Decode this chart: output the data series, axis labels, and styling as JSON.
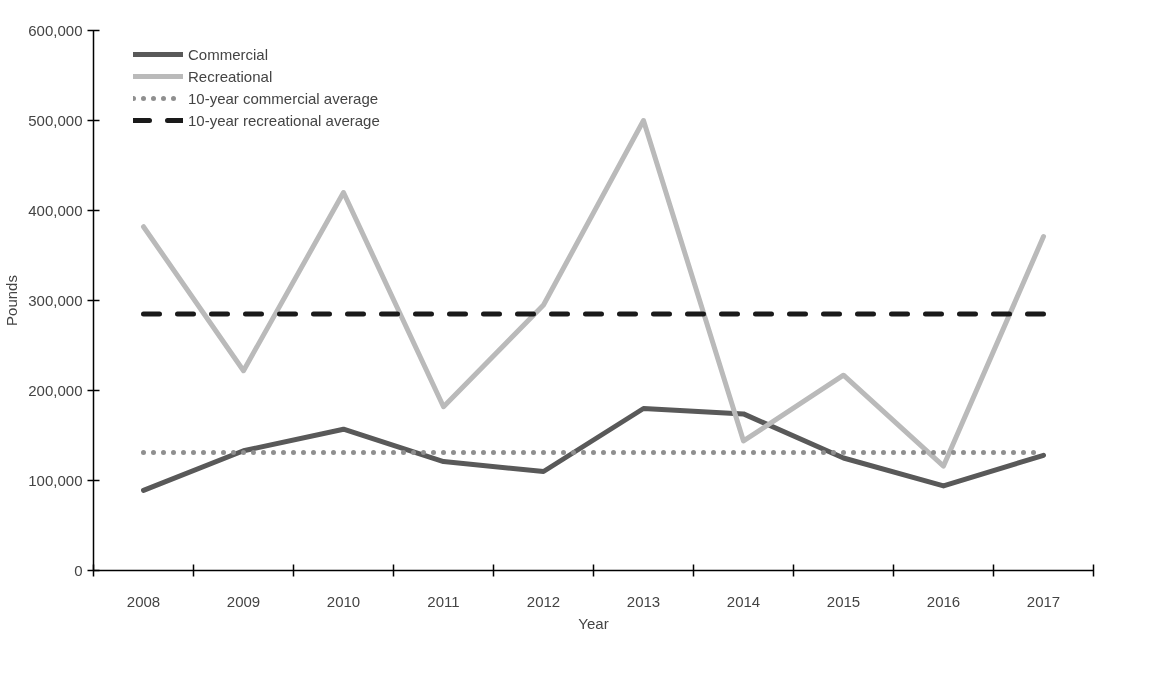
{
  "chart_data": {
    "type": "line",
    "xlabel": "Year",
    "ylabel": "Pounds",
    "categories": [
      "2008",
      "2009",
      "2010",
      "2011",
      "2012",
      "2013",
      "2014",
      "2015",
      "2016",
      "2017"
    ],
    "series": [
      {
        "name": "Commercial",
        "color": "#595959",
        "line_style": "solid",
        "values": [
          89000,
          133000,
          157000,
          121000,
          110000,
          180000,
          174000,
          125000,
          94000,
          128000
        ]
      },
      {
        "name": "Recreational",
        "color": "#bababa",
        "line_style": "solid",
        "values": [
          382000,
          222000,
          420000,
          182000,
          295000,
          500000,
          144000,
          217000,
          116000,
          371000
        ]
      },
      {
        "name": "10-year commercial average",
        "color": "#8f8f8f",
        "line_style": "dotted",
        "values": [
          131000,
          131000,
          131000,
          131000,
          131000,
          131000,
          131000,
          131000,
          131000,
          131000
        ]
      },
      {
        "name": "10-year recreational average",
        "color": "#1a1a1a",
        "line_style": "dashed",
        "values": [
          285000,
          285000,
          285000,
          285000,
          285000,
          285000,
          285000,
          285000,
          285000,
          285000
        ]
      }
    ],
    "ylim": [
      0,
      600000
    ],
    "yticks": [
      {
        "value": 0,
        "label": "0"
      },
      {
        "value": 100000,
        "label": "100,000"
      },
      {
        "value": 200000,
        "label": "200,000"
      },
      {
        "value": 300000,
        "label": "300,000"
      },
      {
        "value": 400000,
        "label": "400,000"
      },
      {
        "value": 500000,
        "label": "500,000"
      },
      {
        "value": 600000,
        "label": "600,000"
      }
    ],
    "grid": false,
    "legend": "top left",
    "marker": "none"
  }
}
